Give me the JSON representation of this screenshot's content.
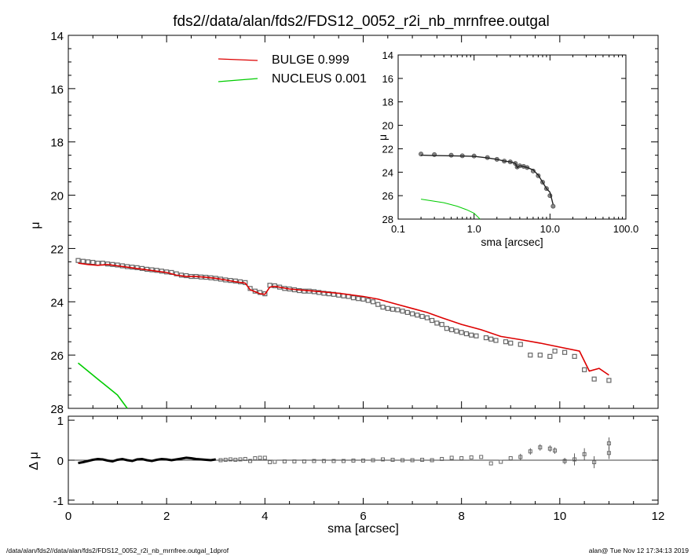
{
  "title": "fds2//data/alan/fds2/FDS12_0052_r2i_nb_mrnfree.outgal",
  "footer": {
    "left": "/data/alan/fds2//data/alan/fds2/FDS12_0052_r2i_nb_mrnfree.outgal_1dprof",
    "right": "alan@  Tue Nov 12 17:34:13 2019"
  },
  "colors": {
    "bulge": "#dd0000",
    "nucleus": "#00cc00",
    "data": "#666666",
    "axis": "#000000"
  },
  "chart_data": [
    {
      "panel": "main",
      "type": "line",
      "xlabel": "sma [arcsec]",
      "ylabel": "μ",
      "xlim": [
        0,
        12
      ],
      "ylim": [
        28,
        14
      ],
      "xticks": [
        "0",
        "2",
        "4",
        "6",
        "8",
        "10",
        "12"
      ],
      "yticks": [
        "14",
        "16",
        "18",
        "20",
        "22",
        "24",
        "26",
        "28"
      ],
      "legend": [
        {
          "name": "BULGE",
          "value": "0.999",
          "color": "#dd0000"
        },
        {
          "name": "NUCLEUS",
          "value": "0.001",
          "color": "#00cc00"
        }
      ],
      "legend_position": "top-center",
      "series": [
        {
          "name": "BULGE",
          "kind": "line",
          "color": "#dd0000",
          "x": [
            0.2,
            0.4,
            0.6,
            0.8,
            1.0,
            1.2,
            1.4,
            1.6,
            1.8,
            2.0,
            2.2,
            2.4,
            2.6,
            2.8,
            3.0,
            3.2,
            3.4,
            3.6,
            3.7,
            3.8,
            3.9,
            4.0,
            4.1,
            4.2,
            4.5,
            5.0,
            5.5,
            6.0,
            6.3,
            6.6,
            7.0,
            7.3,
            7.6,
            8.0,
            8.4,
            8.8,
            9.2,
            9.6,
            10.0,
            10.4,
            10.6,
            10.8,
            11.0
          ],
          "y": [
            22.55,
            22.6,
            22.63,
            22.6,
            22.65,
            22.7,
            22.75,
            22.8,
            22.85,
            22.9,
            23.0,
            23.05,
            23.05,
            23.08,
            23.12,
            23.18,
            23.25,
            23.3,
            23.55,
            23.62,
            23.7,
            23.72,
            23.45,
            23.42,
            23.52,
            23.6,
            23.68,
            23.8,
            23.9,
            24.05,
            24.25,
            24.4,
            24.6,
            24.85,
            25.05,
            25.3,
            25.42,
            25.55,
            25.7,
            25.85,
            26.6,
            26.5,
            26.75
          ]
        },
        {
          "name": "data",
          "kind": "points",
          "color": "#666666",
          "x": [
            0.2,
            0.3,
            0.4,
            0.5,
            0.6,
            0.7,
            0.8,
            0.9,
            1.0,
            1.1,
            1.2,
            1.3,
            1.4,
            1.5,
            1.6,
            1.7,
            1.8,
            1.9,
            2.0,
            2.1,
            2.2,
            2.3,
            2.4,
            2.5,
            2.6,
            2.7,
            2.8,
            2.9,
            3.0,
            3.1,
            3.2,
            3.3,
            3.4,
            3.5,
            3.6,
            3.7,
            3.8,
            3.9,
            4.0,
            4.1,
            4.2,
            4.3,
            4.4,
            4.5,
            4.6,
            4.7,
            4.8,
            4.9,
            5.0,
            5.1,
            5.2,
            5.3,
            5.4,
            5.5,
            5.6,
            5.7,
            5.8,
            5.9,
            6.0,
            6.1,
            6.2,
            6.3,
            6.4,
            6.5,
            6.6,
            6.7,
            6.8,
            6.9,
            7.0,
            7.1,
            7.2,
            7.3,
            7.4,
            7.5,
            7.6,
            7.7,
            7.8,
            7.9,
            8.0,
            8.1,
            8.2,
            8.3,
            8.5,
            8.6,
            8.7,
            8.9,
            9.0,
            9.2,
            9.4,
            9.6,
            9.8,
            9.9,
            10.1,
            10.3,
            10.5,
            10.7,
            11.0
          ],
          "y": [
            22.45,
            22.48,
            22.5,
            22.52,
            22.55,
            22.55,
            22.58,
            22.6,
            22.62,
            22.65,
            22.68,
            22.7,
            22.72,
            22.75,
            22.78,
            22.8,
            22.82,
            22.85,
            22.88,
            22.9,
            22.95,
            23.0,
            23.02,
            23.05,
            23.05,
            23.07,
            23.08,
            23.1,
            23.12,
            23.15,
            23.18,
            23.2,
            23.22,
            23.25,
            23.28,
            23.5,
            23.6,
            23.65,
            23.7,
            23.38,
            23.4,
            23.45,
            23.5,
            23.52,
            23.55,
            23.58,
            23.6,
            23.6,
            23.62,
            23.65,
            23.68,
            23.7,
            23.72,
            23.75,
            23.78,
            23.8,
            23.85,
            23.88,
            23.9,
            23.95,
            24.0,
            24.1,
            24.2,
            24.25,
            24.28,
            24.3,
            24.35,
            24.4,
            24.45,
            24.5,
            24.55,
            24.6,
            24.7,
            24.8,
            24.85,
            25.0,
            25.05,
            25.1,
            25.15,
            25.2,
            25.25,
            25.28,
            25.35,
            25.4,
            25.45,
            25.5,
            25.55,
            25.6,
            26.0,
            26.0,
            26.05,
            25.85,
            25.9,
            26.05,
            26.55,
            26.9,
            26.95
          ]
        },
        {
          "name": "NUCLEUS",
          "kind": "line",
          "color": "#00cc00",
          "x": [
            0.2,
            0.4,
            0.6,
            0.8,
            1.0,
            1.2
          ],
          "y": [
            26.3,
            26.6,
            26.9,
            27.2,
            27.5,
            28.0
          ]
        }
      ]
    },
    {
      "panel": "inset",
      "type": "line",
      "xscale": "log",
      "xlabel": "sma [arcsec]",
      "ylabel": "μ",
      "xlim": [
        0.1,
        100.0
      ],
      "ylim": [
        28,
        14
      ],
      "xticks": [
        "0.1",
        "1.0",
        "10.0",
        "100.0"
      ],
      "yticks": [
        "14",
        "16",
        "18",
        "20",
        "22",
        "24",
        "26",
        "28"
      ],
      "series": [
        {
          "name": "data",
          "kind": "points",
          "color": "#666666",
          "x": [
            0.2,
            0.3,
            0.5,
            0.7,
            1.0,
            1.5,
            2.0,
            2.5,
            3.0,
            3.5,
            3.7,
            4.0,
            4.5,
            5.0,
            6.0,
            7.0,
            8.0,
            9.0,
            10.0,
            11.0
          ],
          "y": [
            22.45,
            22.5,
            22.55,
            22.6,
            22.62,
            22.75,
            22.9,
            23.05,
            23.12,
            23.25,
            23.55,
            23.45,
            23.5,
            23.6,
            23.9,
            24.3,
            24.85,
            25.4,
            26.0,
            26.9
          ]
        },
        {
          "name": "BULGE",
          "kind": "line",
          "color": "#dd0000",
          "x": [
            0.2,
            0.3,
            0.5,
            0.7,
            1.0,
            1.5,
            2.0,
            2.5,
            3.0,
            3.5,
            3.7,
            4.0,
            4.5,
            5.0,
            6.0,
            7.0,
            8.0,
            9.0,
            10.0,
            11.0
          ],
          "y": [
            22.55,
            22.58,
            22.6,
            22.62,
            22.65,
            22.78,
            22.9,
            23.05,
            23.12,
            23.25,
            23.6,
            23.45,
            23.52,
            23.6,
            23.8,
            24.25,
            24.85,
            25.4,
            25.7,
            26.75
          ]
        },
        {
          "name": "NUCLEUS",
          "kind": "line",
          "color": "#00cc00",
          "x": [
            0.2,
            0.4,
            0.6,
            0.8,
            1.0,
            1.2
          ],
          "y": [
            26.3,
            26.6,
            26.9,
            27.2,
            27.5,
            28.0
          ]
        }
      ]
    },
    {
      "panel": "residual",
      "type": "scatter",
      "xlabel": "sma [arcsec]",
      "ylabel": "Δ μ",
      "xlim": [
        0,
        12
      ],
      "ylim": [
        -1.1,
        1.1
      ],
      "xticks": [
        "0",
        "2",
        "4",
        "6",
        "8",
        "10",
        "12"
      ],
      "yticks": [
        "-1",
        "0",
        "1"
      ],
      "zero_line": 0,
      "series": [
        {
          "name": "residual_dense",
          "kind": "line",
          "color": "#000000",
          "x": [
            0.2,
            0.3,
            0.4,
            0.5,
            0.6,
            0.7,
            0.8,
            0.9,
            1.0,
            1.1,
            1.2,
            1.3,
            1.4,
            1.5,
            1.6,
            1.7,
            1.8,
            1.9,
            2.0,
            2.1,
            2.2,
            2.3,
            2.4,
            2.5,
            2.6,
            2.7,
            2.8,
            2.9,
            3.0
          ],
          "y": [
            -0.07,
            -0.05,
            -0.02,
            0.01,
            0.03,
            0.02,
            -0.01,
            -0.03,
            0.01,
            0.03,
            0.0,
            -0.02,
            0.02,
            0.03,
            0.0,
            -0.02,
            0.01,
            0.03,
            0.02,
            0.0,
            0.02,
            0.04,
            0.06,
            0.05,
            0.03,
            0.02,
            0.01,
            0.0,
            0.02
          ]
        },
        {
          "name": "residual",
          "kind": "points",
          "color": "#666666",
          "x": [
            3.1,
            3.2,
            3.3,
            3.4,
            3.5,
            3.6,
            3.7,
            3.8,
            3.9,
            4.0,
            4.1,
            4.2,
            4.4,
            4.6,
            4.8,
            5.0,
            5.2,
            5.4,
            5.6,
            5.8,
            6.0,
            6.2,
            6.4,
            6.6,
            6.8,
            7.0,
            7.2,
            7.4,
            7.6,
            7.8,
            8.0,
            8.2,
            8.4,
            8.6,
            8.8,
            9.0,
            9.2,
            9.4,
            9.6,
            9.8,
            9.9,
            10.1,
            10.3,
            10.5,
            10.7,
            11.0
          ],
          "y": [
            0.0,
            0.01,
            0.02,
            0.01,
            0.02,
            0.03,
            -0.02,
            0.05,
            0.06,
            0.06,
            -0.05,
            -0.04,
            -0.03,
            -0.03,
            -0.03,
            -0.02,
            -0.02,
            -0.02,
            -0.02,
            -0.01,
            -0.01,
            0.0,
            0.02,
            0.01,
            0.0,
            0.0,
            0.01,
            0.0,
            0.03,
            0.06,
            0.05,
            0.07,
            0.08,
            -0.08,
            -0.04,
            0.05,
            0.08,
            0.22,
            0.32,
            0.29,
            0.24,
            -0.02,
            0.02,
            0.15,
            -0.05,
            0.42
          ]
        },
        {
          "name": "residual_last",
          "kind": "points",
          "color": "#666666",
          "x": [
            11.0
          ],
          "y": [
            0.18
          ]
        }
      ]
    }
  ]
}
